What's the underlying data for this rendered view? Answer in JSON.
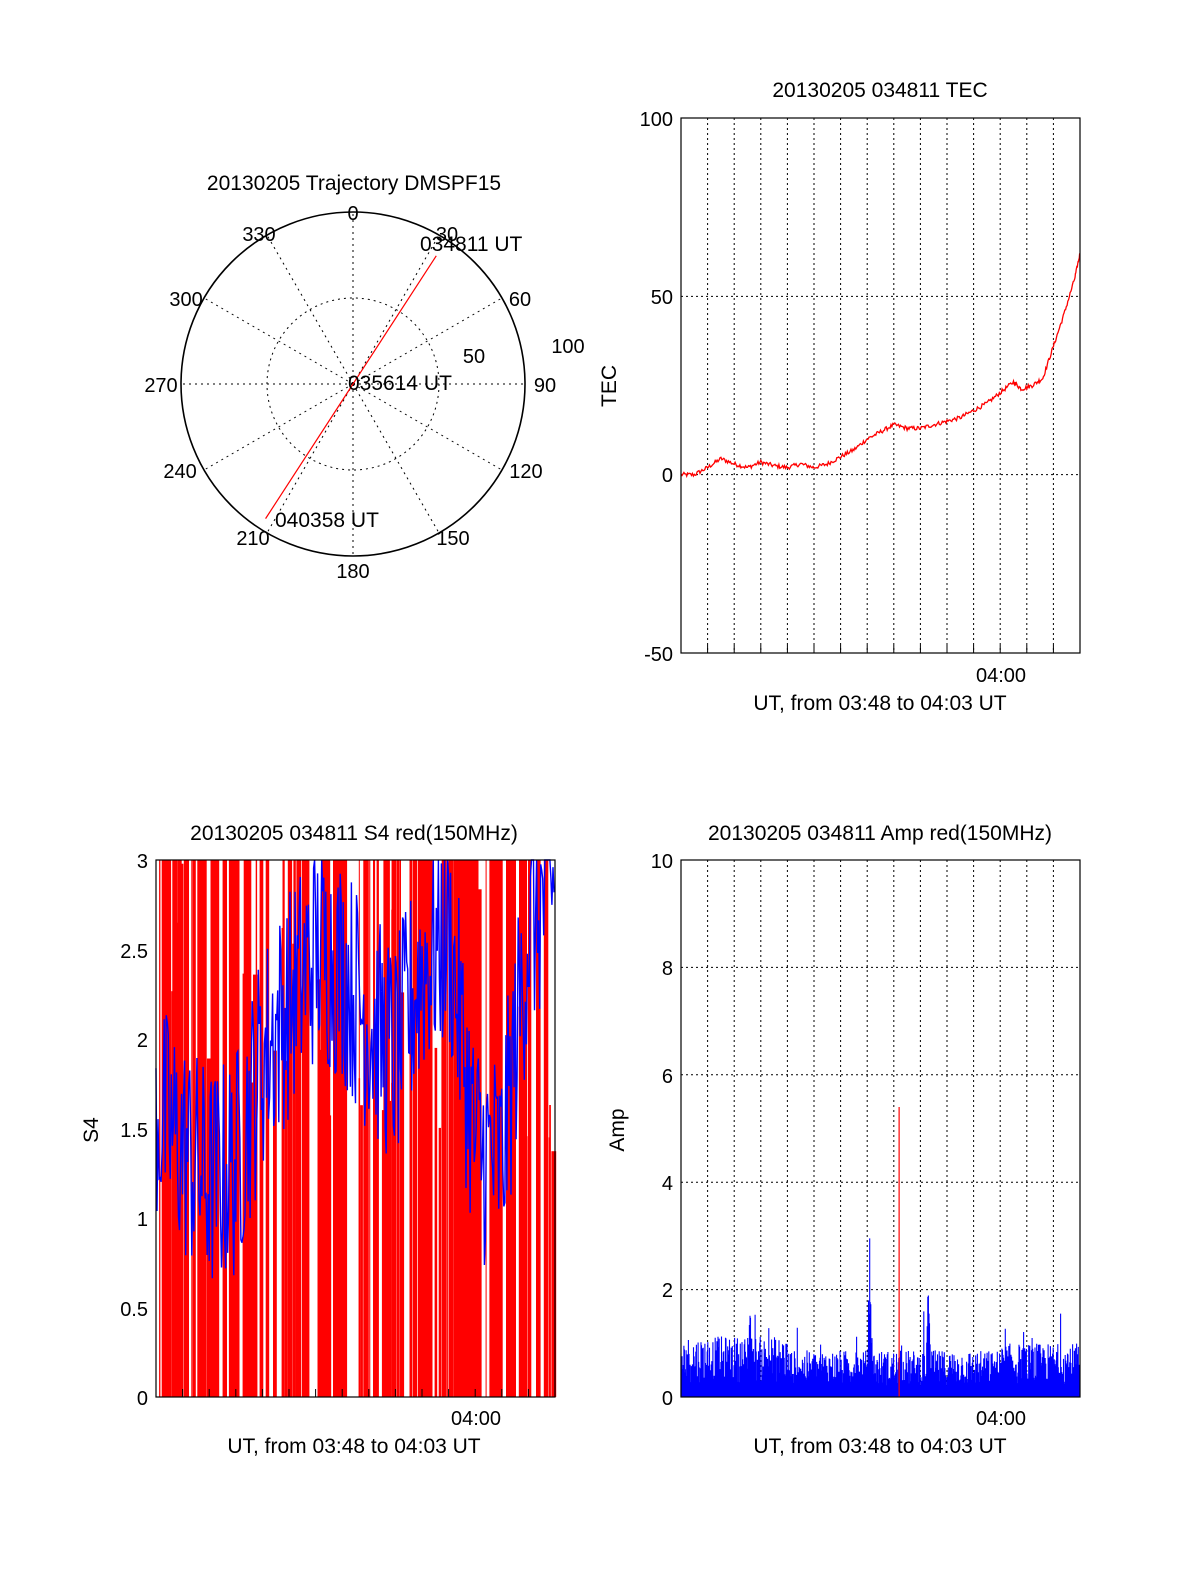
{
  "colors": {
    "red": "#ff0000",
    "blue": "#0000ff",
    "axis": "#000000"
  },
  "chart_data": [
    {
      "type": "polar",
      "title": "20130205 Trajectory DMSPF15",
      "azimuth_labels": [
        "0",
        "30",
        "60",
        "90",
        "120",
        "150",
        "180",
        "210",
        "240",
        "270",
        "300",
        "330"
      ],
      "radial_labels": [
        "50",
        "100"
      ],
      "radial_range": [
        0,
        100
      ],
      "grid": true,
      "trajectory": {
        "color": "red",
        "points": [
          {
            "azimuth_deg": 33,
            "elevation": 10
          },
          {
            "azimuth_deg": 0,
            "elevation": 90
          },
          {
            "azimuth_deg": 213,
            "elevation": 6
          }
        ]
      },
      "annotations": [
        {
          "text": "034811 UT"
        },
        {
          "text": "035614 UT"
        },
        {
          "text": "040358 UT"
        }
      ]
    },
    {
      "type": "line",
      "title": "20130205 034811 TEC",
      "xlabel": "UT, from 03:48 to 04:03 UT",
      "ylabel": "TEC",
      "xlim": [
        "03:48",
        "04:03"
      ],
      "ylim": [
        -50,
        100
      ],
      "yticks": [
        "100",
        "50",
        "0",
        "-50"
      ],
      "xticks": [
        "04:00"
      ],
      "grid": true,
      "series": [
        {
          "color": "red",
          "t_min": [
            0,
            0.5,
            1,
            1.5,
            2,
            2.5,
            3,
            3.5,
            4,
            4.5,
            5,
            5.5,
            6,
            6.5,
            7,
            7.5,
            8,
            8.5,
            9,
            9.5,
            10,
            10.5,
            11,
            11.5,
            12,
            12.5,
            12.8,
            13.2,
            13.6,
            14,
            14.4,
            14.8,
            15
          ],
          "values": [
            0,
            0,
            2,
            4.5,
            3,
            2,
            3.5,
            2.5,
            2,
            3,
            2,
            3,
            5,
            7,
            10,
            12,
            14,
            13,
            13,
            14,
            15,
            16,
            18,
            20,
            23,
            26,
            24,
            25,
            27,
            36,
            45,
            55,
            62
          ]
        }
      ]
    },
    {
      "type": "bar",
      "title": "20130205 034811 S4 red(150MHz)",
      "xlabel": "UT, from 03:48 to 04:03 UT",
      "ylabel": "S4",
      "xlim": [
        "03:48",
        "04:03"
      ],
      "ylim": [
        0,
        3
      ],
      "yticks": [
        "3",
        "2.5",
        "2",
        "1.5",
        "1",
        "0.5",
        "0"
      ],
      "xticks": [
        "04:00"
      ],
      "grid": false,
      "series": [
        {
          "color": "red",
          "description_values": "dense saturated spikes 0–3"
        },
        {
          "color": "blue",
          "t_min": [
            0,
            1,
            2,
            3,
            4,
            5,
            6,
            7,
            8,
            9,
            10,
            11,
            12,
            13,
            14,
            15
          ],
          "values": [
            1.6,
            1.4,
            1.2,
            1.3,
            1.9,
            2.2,
            2.5,
            2.4,
            2.1,
            1.9,
            2.4,
            2.6,
            1.4,
            1.3,
            2.6,
            2.9
          ]
        }
      ]
    },
    {
      "type": "bar",
      "title": "20130205 034811 Amp red(150MHz)",
      "xlabel": "UT, from 03:48 to 04:03 UT",
      "ylabel": "Amp",
      "xlim": [
        "03:48",
        "04:03"
      ],
      "ylim": [
        0,
        10
      ],
      "yticks": [
        "10",
        "8",
        "6",
        "4",
        "2",
        "0"
      ],
      "xticks": [
        "04:00"
      ],
      "grid": true,
      "series": [
        {
          "color": "blue",
          "baseline_level": 0.6,
          "peaks": [
            {
              "t_min": 7.1,
              "value": 3.2
            },
            {
              "t_min": 9.3,
              "value": 2.3
            },
            {
              "t_min": 2.6,
              "value": 1.9
            }
          ]
        },
        {
          "color": "red",
          "peaks": [
            {
              "t_min": 8.2,
              "value": 5.4
            }
          ]
        }
      ]
    }
  ]
}
